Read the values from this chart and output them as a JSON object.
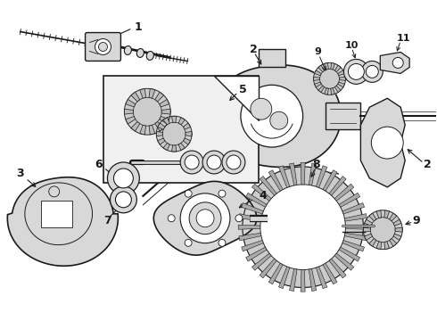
{
  "background_color": "#ffffff",
  "line_color": "#1a1a1a",
  "fill_light": "#d8d8d8",
  "fill_white": "#ffffff",
  "parts": {
    "shaft_label": "1",
    "housing_label": "2",
    "cover_label": "3",
    "diff_label": "4",
    "spider_label": "5",
    "seal1_label": "6",
    "seal2_label": "7",
    "ringgear_label": "8",
    "pinion_label": "9",
    "bearing1_label": "10",
    "cap_label": "11"
  }
}
